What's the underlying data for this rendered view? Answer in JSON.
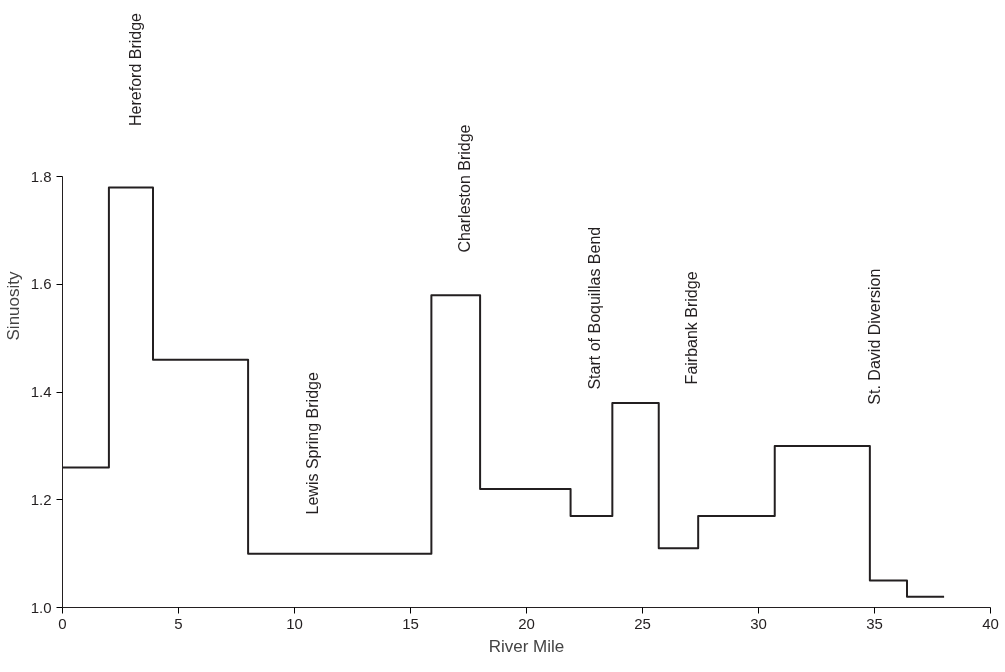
{
  "chart_data": {
    "type": "step",
    "xlabel": "River Mile",
    "ylabel": "Sinuosity",
    "x": [
      0,
      2.0,
      3.9,
      8.0,
      15.9,
      18.0,
      21.9,
      23.7,
      25.7,
      27.4,
      30.7,
      34.8,
      36.4,
      38.0
    ],
    "series": [
      {
        "color": "#231f20",
        "values": [
          1.26,
          1.78,
          1.46,
          1.1,
          1.58,
          1.22,
          1.17,
          1.38,
          1.11,
          1.17,
          1.3,
          1.05,
          1.02,
          1.02
        ]
      }
    ],
    "xlim": [
      0,
      40
    ],
    "xticks": [
      0,
      5,
      10,
      15,
      20,
      25,
      30,
      35,
      40
    ],
    "ylim": [
      1.0,
      1.8
    ],
    "yticks": [
      {
        "value": 1.0,
        "label": "1.0"
      },
      1.2,
      1.4,
      1.6,
      1.8
    ],
    "annotations": [
      "Hereford Bridge",
      "Lewis Spring Bridge",
      "Charleston Bridge",
      "Start of Boquillas Bend",
      "Fairbank Bridge",
      "St. David Diversion"
    ],
    "grid": false,
    "line_style": "solid"
  }
}
